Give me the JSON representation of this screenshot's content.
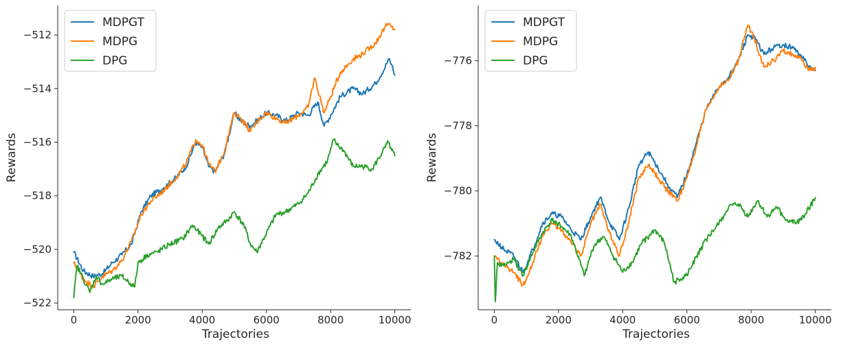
{
  "chart_data": [
    {
      "type": "line",
      "xlabel": "Trajectories",
      "ylabel": "Rewards",
      "xlim": [
        -500,
        10500
      ],
      "ylim": [
        -522.25,
        -510.9
      ],
      "xticks": [
        0,
        2000,
        4000,
        6000,
        8000,
        10000
      ],
      "xtick_labels": [
        "0",
        "2000",
        "4000",
        "6000",
        "8000",
        "10000"
      ],
      "yticks": [
        -522,
        -520,
        -518,
        -516,
        -514,
        -512
      ],
      "ytick_labels": [
        "−522",
        "−520",
        "−518",
        "−516",
        "−514",
        "−512"
      ],
      "legend_position": "upper-left",
      "grid": false,
      "series": [
        {
          "name": "MDPGT",
          "color": "#1f77b4",
          "x": [
            0,
            300,
            600,
            900,
            1200,
            1500,
            1800,
            2100,
            2400,
            2800,
            3200,
            3500,
            3800,
            4000,
            4200,
            4400,
            4700,
            5000,
            5200,
            5500,
            5800,
            6000,
            6300,
            6600,
            7000,
            7300,
            7600,
            7800,
            8000,
            8300,
            8700,
            9000,
            9400,
            9700,
            9800,
            9900,
            10000
          ],
          "y": [
            -520.1,
            -520.8,
            -521.0,
            -520.9,
            -520.5,
            -520.2,
            -519.8,
            -518.6,
            -518.0,
            -517.7,
            -517.3,
            -516.9,
            -516.0,
            -516.2,
            -516.9,
            -517.1,
            -516.4,
            -514.9,
            -515.2,
            -515.4,
            -515.1,
            -514.9,
            -515.0,
            -515.2,
            -514.9,
            -515.0,
            -514.5,
            -515.4,
            -515.0,
            -514.3,
            -514.0,
            -514.2,
            -513.8,
            -513.2,
            -512.9,
            -513.1,
            -513.5
          ]
        },
        {
          "name": "MDPG",
          "color": "#ff7f0e",
          "x": [
            0,
            300,
            600,
            900,
            1200,
            1500,
            1800,
            2100,
            2400,
            2800,
            3200,
            3500,
            3800,
            4000,
            4200,
            4400,
            4700,
            5000,
            5200,
            5500,
            5800,
            6000,
            6300,
            6600,
            7000,
            7300,
            7500,
            7800,
            8000,
            8300,
            8700,
            9000,
            9400,
            9700,
            9800,
            9900,
            10000
          ],
          "y": [
            -520.5,
            -521.1,
            -521.4,
            -521.0,
            -520.8,
            -520.4,
            -519.7,
            -518.7,
            -518.2,
            -517.8,
            -517.3,
            -516.8,
            -515.9,
            -516.1,
            -516.8,
            -517.1,
            -516.3,
            -514.9,
            -515.1,
            -515.6,
            -515.1,
            -514.9,
            -515.1,
            -515.3,
            -515.0,
            -514.7,
            -513.6,
            -514.9,
            -514.3,
            -513.4,
            -512.9,
            -512.7,
            -512.3,
            -511.7,
            -511.6,
            -511.7,
            -511.8
          ]
        },
        {
          "name": "DPG",
          "color": "#2ca02c",
          "x": [
            0,
            100,
            300,
            500,
            700,
            900,
            1200,
            1500,
            1800,
            1900,
            2000,
            2300,
            2600,
            3000,
            3400,
            3700,
            4000,
            4200,
            4500,
            4800,
            5000,
            5300,
            5500,
            5700,
            6000,
            6300,
            6600,
            7000,
            7300,
            7600,
            7900,
            8100,
            8200,
            8400,
            8700,
            9000,
            9300,
            9600,
            9800,
            9900,
            10000
          ],
          "y": [
            -521.8,
            -520.6,
            -521.1,
            -521.6,
            -521.0,
            -521.3,
            -521.1,
            -521.0,
            -521.3,
            -521.4,
            -520.5,
            -520.2,
            -520.1,
            -519.8,
            -519.6,
            -519.1,
            -519.5,
            -519.8,
            -519.2,
            -518.9,
            -518.6,
            -519.1,
            -519.8,
            -520.1,
            -519.4,
            -518.7,
            -518.6,
            -518.3,
            -517.9,
            -517.2,
            -516.7,
            -515.9,
            -516.1,
            -516.3,
            -516.9,
            -516.9,
            -517.0,
            -516.4,
            -516.0,
            -516.3,
            -516.5
          ]
        }
      ]
    },
    {
      "type": "line",
      "xlabel": "Trajectories",
      "ylabel": "Rewards",
      "xlim": [
        -500,
        10500
      ],
      "ylim": [
        -783.65,
        -774.3
      ],
      "xticks": [
        0,
        2000,
        4000,
        6000,
        8000,
        10000
      ],
      "xtick_labels": [
        "0",
        "2000",
        "4000",
        "6000",
        "8000",
        "10000"
      ],
      "yticks": [
        -782,
        -780,
        -778,
        -776
      ],
      "ytick_labels": [
        "−782",
        "−780",
        "−778",
        "−776"
      ],
      "legend_position": "upper-left",
      "grid": false,
      "series": [
        {
          "name": "MDPGT",
          "color": "#1f77b4",
          "x": [
            0,
            300,
            600,
            900,
            1200,
            1500,
            1800,
            2100,
            2400,
            2700,
            3000,
            3300,
            3600,
            3900,
            4200,
            4500,
            4800,
            5100,
            5400,
            5700,
            6000,
            6300,
            6600,
            7000,
            7300,
            7600,
            7900,
            8100,
            8400,
            8700,
            9000,
            9300,
            9600,
            9800,
            10000
          ],
          "y": [
            -781.5,
            -781.8,
            -782.0,
            -782.5,
            -781.8,
            -781.0,
            -780.7,
            -780.8,
            -781.2,
            -781.5,
            -780.8,
            -780.2,
            -781.0,
            -781.5,
            -780.5,
            -779.2,
            -778.8,
            -779.3,
            -779.8,
            -780.2,
            -779.5,
            -778.5,
            -777.5,
            -776.8,
            -776.5,
            -776.0,
            -775.2,
            -775.3,
            -775.8,
            -775.6,
            -775.5,
            -775.6,
            -775.9,
            -776.2,
            -776.3
          ]
        },
        {
          "name": "MDPG",
          "color": "#ff7f0e",
          "x": [
            0,
            300,
            600,
            900,
            1200,
            1500,
            1800,
            2100,
            2400,
            2700,
            3000,
            3300,
            3600,
            3900,
            4200,
            4500,
            4800,
            5100,
            5400,
            5700,
            6000,
            6300,
            6600,
            7000,
            7300,
            7600,
            7900,
            8100,
            8400,
            8700,
            9000,
            9300,
            9600,
            9800,
            10000
          ],
          "y": [
            -782.0,
            -782.3,
            -782.5,
            -782.9,
            -782.2,
            -781.4,
            -781.0,
            -781.2,
            -781.6,
            -782.0,
            -781.0,
            -780.4,
            -781.3,
            -782.0,
            -780.9,
            -779.6,
            -779.2,
            -779.6,
            -780.0,
            -780.3,
            -779.6,
            -778.6,
            -777.5,
            -776.8,
            -776.6,
            -776.0,
            -774.9,
            -775.3,
            -776.2,
            -776.0,
            -775.7,
            -775.8,
            -776.0,
            -776.3,
            -776.2
          ]
        },
        {
          "name": "DPG",
          "color": "#2ca02c",
          "x": [
            0,
            30,
            100,
            300,
            600,
            900,
            1200,
            1500,
            1800,
            2100,
            2400,
            2800,
            3100,
            3400,
            3700,
            4000,
            4300,
            4600,
            5000,
            5300,
            5600,
            5800,
            6000,
            6300,
            6600,
            7000,
            7300,
            7600,
            7900,
            8200,
            8500,
            8800,
            9100,
            9400,
            9700,
            10000
          ],
          "y": [
            -782.0,
            -783.4,
            -782.2,
            -782.3,
            -782.1,
            -782.6,
            -781.9,
            -781.3,
            -780.9,
            -781.1,
            -781.4,
            -782.6,
            -781.7,
            -781.4,
            -782.0,
            -782.5,
            -782.2,
            -781.6,
            -781.2,
            -781.6,
            -782.8,
            -782.7,
            -782.6,
            -782.0,
            -781.5,
            -781.0,
            -780.5,
            -780.4,
            -780.8,
            -780.3,
            -780.8,
            -780.5,
            -780.9,
            -781.0,
            -780.7,
            -780.2
          ]
        }
      ]
    }
  ]
}
